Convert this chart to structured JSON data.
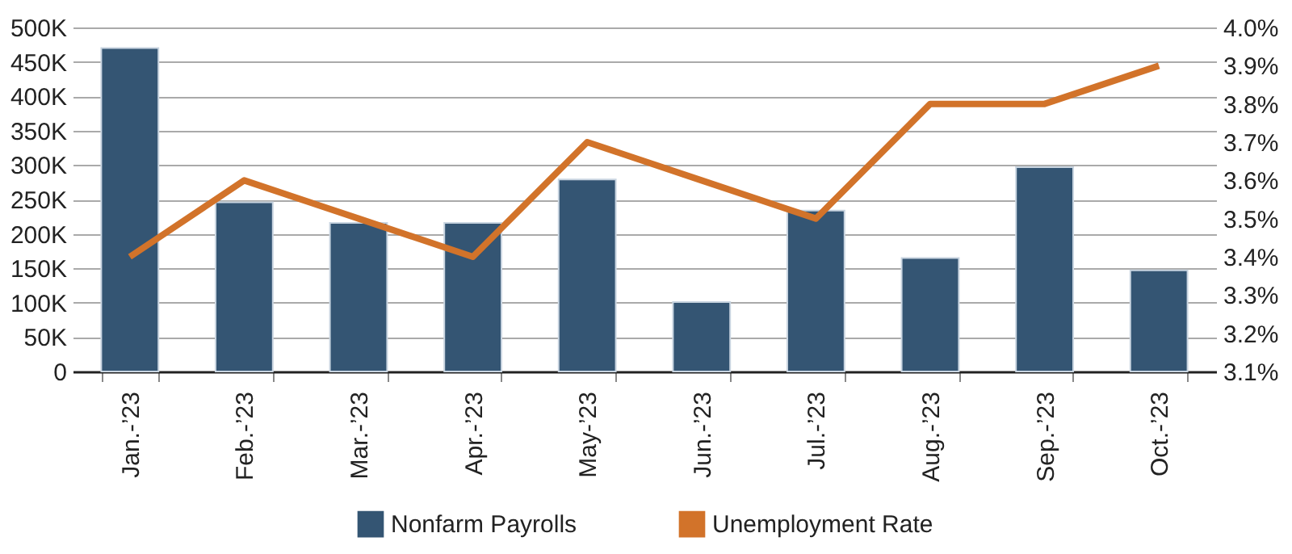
{
  "chart_data": {
    "type": "bar",
    "categories": [
      "Jan.-’23",
      "Feb.-’23",
      "Mar.-’23",
      "Apr.-’23",
      "May-’23",
      "Jun.-’23",
      "Jul.-’23",
      "Aug.-’23",
      "Sep.-’23",
      "Oct.-’23"
    ],
    "series": [
      {
        "name": "Nonfarm Payrolls",
        "color": "#345573",
        "values": [
          470,
          246,
          216,
          216,
          279,
          101,
          234,
          165,
          297,
          147
        ]
      },
      {
        "name": "Unemployment Rate",
        "type": "line",
        "axis": "y2",
        "color": "#d2732a",
        "values": [
          3.4,
          3.6,
          3.5,
          3.4,
          3.7,
          3.6,
          3.5,
          3.8,
          3.8,
          3.9
        ]
      }
    ],
    "ylim": [
      0,
      500
    ],
    "yticks": [
      {
        "value": 0,
        "label": "0"
      },
      {
        "value": 50,
        "label": "50K"
      },
      {
        "value": 100,
        "label": "100K"
      },
      {
        "value": 150,
        "label": "150K"
      },
      {
        "value": 200,
        "label": "200K"
      },
      {
        "value": 250,
        "label": "250K"
      },
      {
        "value": 300,
        "label": "300K"
      },
      {
        "value": 350,
        "label": "350K"
      },
      {
        "value": 400,
        "label": "400K"
      },
      {
        "value": 450,
        "label": "450K"
      },
      {
        "value": 500,
        "label": "500K"
      }
    ],
    "y2lim": [
      3.1,
      4.0
    ],
    "y2ticks": [
      {
        "value": 3.1,
        "label": "3.1%"
      },
      {
        "value": 3.2,
        "label": "3.2%"
      },
      {
        "value": 3.3,
        "label": "3.3%"
      },
      {
        "value": 3.4,
        "label": "3.4%"
      },
      {
        "value": 3.5,
        "label": "3.5%"
      },
      {
        "value": 3.6,
        "label": "3.6%"
      },
      {
        "value": 3.7,
        "label": "3.7%"
      },
      {
        "value": 3.8,
        "label": "3.8%"
      },
      {
        "value": 3.9,
        "label": "3.9%"
      },
      {
        "value": 4.0,
        "label": "4.0%"
      }
    ],
    "grid": "y",
    "legend": "bottom",
    "line_style": "solid",
    "marker": "none"
  }
}
